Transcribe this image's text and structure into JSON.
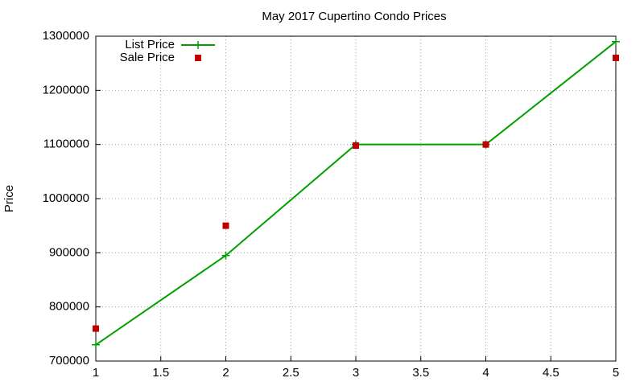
{
  "chart_data": {
    "type": "line",
    "title": "May 2017 Cupertino Condo Prices",
    "y_label": "Price",
    "x": [
      1,
      2,
      3,
      4,
      5
    ],
    "series": [
      {
        "name": "List Price",
        "color": "#00a000",
        "style": "linespoints",
        "values": [
          730000,
          895000,
          1100000,
          1100000,
          1290000
        ]
      },
      {
        "name": "Sale Price",
        "color": "#c00000",
        "style": "points",
        "values": [
          760000,
          950000,
          1098000,
          1100000,
          1260000
        ]
      }
    ],
    "xlim": [
      1,
      5
    ],
    "xticks": [
      1,
      1.5,
      2,
      2.5,
      3,
      3.5,
      4,
      4.5,
      5
    ],
    "ylim": [
      700000,
      1300000
    ],
    "yticks": [
      700000,
      800000,
      900000,
      1000000,
      1100000,
      1200000,
      1300000
    ],
    "grid": true,
    "legend": "top-left"
  }
}
